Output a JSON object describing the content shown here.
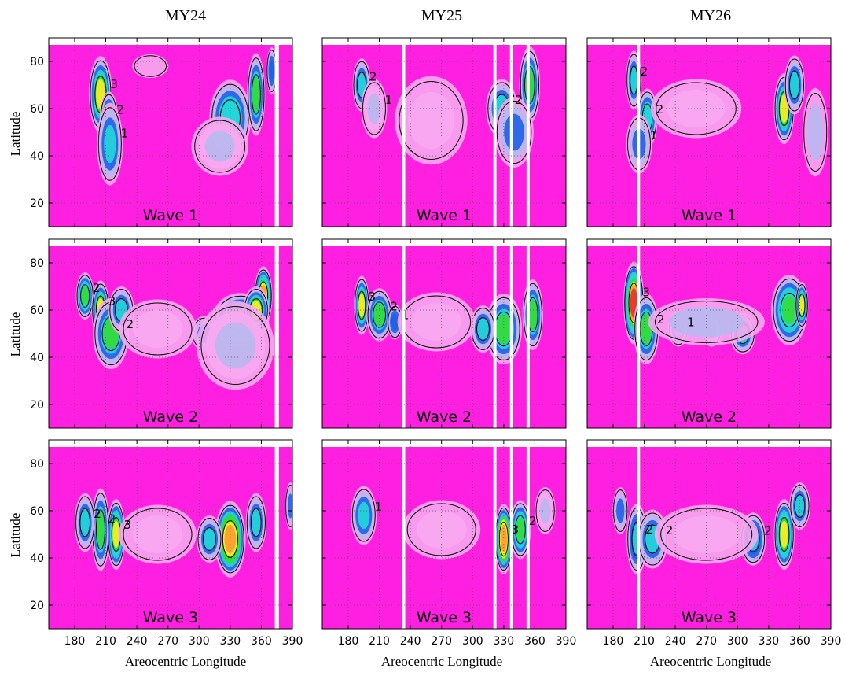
{
  "column_titles": [
    "MY24",
    "MY25",
    "MY26"
  ],
  "x_axis_label": "Areocentric Longitude",
  "y_axis_label": "Latitude",
  "wave_labels": [
    "Wave 1",
    "Wave 2",
    "Wave 3"
  ],
  "contour_level_labels": [
    "1",
    "2",
    "3"
  ],
  "colors": {
    "background": "#ff1fe0",
    "low": "#f7a8f0",
    "mid": "#b8b8f0",
    "blue": "#1f5fe8",
    "cyan": "#22d8d8",
    "green": "#33dd33",
    "yellow": "#ffee22",
    "orange": "#ff9933",
    "red": "#e83030"
  },
  "chart_data": {
    "type": "heatmap",
    "panels_grid": {
      "rows": 3,
      "cols": 3
    },
    "xlabel": "Areocentric Longitude",
    "ylabel": "Latitude",
    "xlim": [
      155,
      390
    ],
    "ylim": [
      10,
      90
    ],
    "xticks": [
      180,
      210,
      240,
      270,
      300,
      330,
      360,
      390
    ],
    "yticks": [
      20,
      40,
      60,
      80
    ],
    "panels": [
      {
        "year": "MY24",
        "wave": "Wave 1",
        "gaps": [
          [
            373,
            377
          ]
        ],
        "blobs": [
          [
            205,
            66,
            9,
            13,
            3.2
          ],
          [
            213,
            56,
            7,
            9,
            2.5
          ],
          [
            214,
            45,
            10,
            14,
            1.9
          ],
          [
            330,
            56,
            16,
            13,
            2.4
          ],
          [
            355,
            66,
            7,
            14,
            2.5
          ],
          [
            320,
            44,
            22,
            10,
            1.3
          ],
          [
            370,
            76,
            4,
            8,
            1.8
          ],
          [
            253,
            78,
            14,
            4,
            0.5
          ]
        ]
      },
      {
        "year": "MY25",
        "wave": "Wave 1",
        "gaps": [
          [
            232,
            235
          ],
          [
            320,
            323
          ],
          [
            336,
            339
          ],
          [
            352,
            355
          ]
        ],
        "blobs": [
          [
            193,
            70,
            7,
            9,
            2.2
          ],
          [
            205,
            60,
            10,
            10,
            1.4
          ],
          [
            328,
            60,
            12,
            10,
            2.2
          ],
          [
            355,
            70,
            8,
            13,
            2.7
          ],
          [
            340,
            50,
            15,
            12,
            1.6
          ],
          [
            260,
            55,
            28,
            15,
            1.1
          ]
        ]
      },
      {
        "year": "MY26",
        "wave": "Wave 1",
        "gaps": [
          [
            203,
            206
          ]
        ],
        "blobs": [
          [
            200,
            72,
            6,
            10,
            2.2
          ],
          [
            213,
            56,
            8,
            10,
            2.4
          ],
          [
            205,
            45,
            10,
            10,
            1.6
          ],
          [
            345,
            60,
            8,
            12,
            3.0
          ],
          [
            355,
            70,
            8,
            10,
            2.0
          ],
          [
            260,
            60,
            35,
            10,
            1.1
          ],
          [
            375,
            50,
            10,
            15,
            1.2
          ]
        ]
      },
      {
        "year": "MY24",
        "wave": "Wave 2",
        "gaps": [
          [
            373,
            377
          ]
        ],
        "blobs": [
          [
            190,
            66,
            7,
            8,
            2.9
          ],
          [
            205,
            60,
            7,
            10,
            3.1
          ],
          [
            215,
            50,
            14,
            12,
            2.6
          ],
          [
            225,
            60,
            10,
            8,
            2.0
          ],
          [
            305,
            50,
            10,
            6,
            1.7
          ],
          [
            340,
            56,
            22,
            9,
            2.9
          ],
          [
            362,
            66,
            7,
            10,
            3.8
          ],
          [
            355,
            60,
            10,
            8,
            3.1
          ],
          [
            260,
            52,
            30,
            10,
            1.1
          ],
          [
            335,
            45,
            30,
            15,
            1.3
          ]
        ]
      },
      {
        "year": "MY25",
        "wave": "Wave 2",
        "gaps": [
          [
            232,
            235
          ],
          [
            320,
            323
          ],
          [
            336,
            339
          ],
          [
            352,
            355
          ]
        ],
        "blobs": [
          [
            193,
            62,
            6,
            10,
            3.1
          ],
          [
            210,
            58,
            10,
            9,
            2.5
          ],
          [
            225,
            55,
            6,
            6,
            1.8
          ],
          [
            330,
            52,
            14,
            12,
            2.7
          ],
          [
            358,
            58,
            8,
            12,
            2.7
          ],
          [
            310,
            52,
            10,
            8,
            2.0
          ],
          [
            265,
            55,
            30,
            10,
            1.1
          ]
        ]
      },
      {
        "year": "MY26",
        "wave": "Wave 2",
        "gaps": [
          [
            203,
            206
          ]
        ],
        "blobs": [
          [
            200,
            63,
            8,
            14,
            4.3
          ],
          [
            212,
            52,
            10,
            12,
            2.5
          ],
          [
            243,
            52,
            8,
            6,
            1.9
          ],
          [
            275,
            52,
            8,
            6,
            1.7
          ],
          [
            305,
            50,
            10,
            7,
            2.0
          ],
          [
            350,
            60,
            14,
            12,
            2.9
          ],
          [
            362,
            62,
            5,
            8,
            3.1
          ],
          [
            270,
            55,
            45,
            8,
            1.2
          ]
        ]
      },
      {
        "year": "MY24",
        "wave": "Wave 3",
        "gaps": [
          [
            373,
            377
          ]
        ],
        "blobs": [
          [
            205,
            52,
            7,
            14,
            2.6
          ],
          [
            220,
            50,
            7,
            12,
            3.3
          ],
          [
            190,
            55,
            8,
            10,
            2.0
          ],
          [
            330,
            48,
            12,
            13,
            3.9
          ],
          [
            310,
            48,
            10,
            8,
            2.0
          ],
          [
            355,
            55,
            8,
            10,
            2.0
          ],
          [
            260,
            50,
            30,
            10,
            1.1
          ],
          [
            388,
            62,
            4,
            8,
            1.6
          ]
        ]
      },
      {
        "year": "MY25",
        "wave": "Wave 3",
        "gaps": [
          [
            232,
            235
          ],
          [
            320,
            323
          ],
          [
            336,
            339
          ],
          [
            352,
            355
          ]
        ],
        "blobs": [
          [
            195,
            58,
            10,
            10,
            1.9
          ],
          [
            330,
            48,
            7,
            12,
            4.0
          ],
          [
            346,
            52,
            8,
            10,
            2.8
          ],
          [
            270,
            52,
            30,
            10,
            1.1
          ],
          [
            370,
            60,
            8,
            8,
            1.4
          ]
        ]
      },
      {
        "year": "MY26",
        "wave": "Wave 3",
        "gaps": [
          [
            203,
            206
          ]
        ],
        "blobs": [
          [
            203,
            48,
            8,
            12,
            2.3
          ],
          [
            218,
            48,
            12,
            10,
            2.2
          ],
          [
            315,
            48,
            10,
            9,
            2.3
          ],
          [
            345,
            50,
            8,
            12,
            3.3
          ],
          [
            360,
            62,
            8,
            8,
            2.1
          ],
          [
            270,
            50,
            40,
            10,
            1.1
          ],
          [
            187,
            60,
            6,
            8,
            1.6
          ]
        ]
      }
    ]
  }
}
